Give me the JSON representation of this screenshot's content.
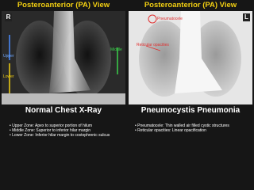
{
  "panels": [
    {
      "header": "Posteroanterior (PA) View",
      "side_marker": "R",
      "image_labels": [
        "Upper",
        "Middle",
        "Lower"
      ],
      "title": "Normal Chest X-Ray",
      "bullets": [
        "Upper Zone: Apex to superior portion of hilum",
        "Middle Zone: Superior to inferior hilar margin",
        "Lower Zone: Inferior hilar margin to costophrenic sulcus"
      ]
    },
    {
      "header": "Posteroanterior (PA) View",
      "side_marker": "L",
      "image_labels": [
        "Pneumatocele",
        "Reticular opacities"
      ],
      "title": "Pneumocystis Pneumonia",
      "bullets": [
        "Pneumatocele: Thin walled air filled cystic structures",
        "Reticular opacities: Linear opacification"
      ]
    }
  ]
}
